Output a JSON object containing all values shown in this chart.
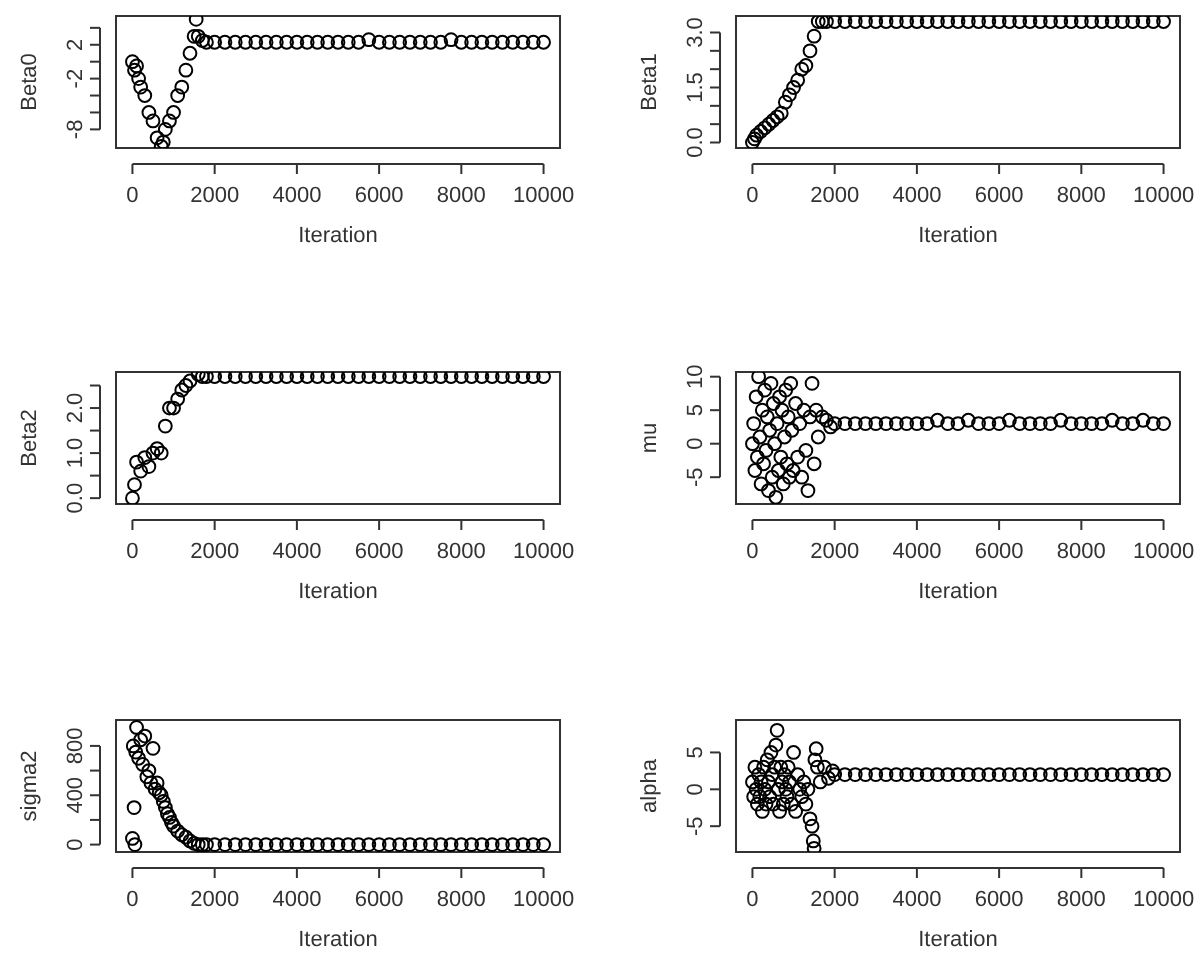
{
  "chart_data": [
    {
      "type": "scatter",
      "xlabel": "Iteration",
      "ylabel": "Beta0",
      "marker": "circle",
      "color": "#000000",
      "xlim": [
        -400,
        10400
      ],
      "xticks": [
        0,
        2000,
        4000,
        6000,
        8000,
        10000
      ],
      "ylim": [
        -10.2,
        5.4
      ],
      "yticks": [
        {
          "value": -8,
          "label": "-8"
        },
        {
          "value": -6,
          "label": null
        },
        {
          "value": -4,
          "label": null
        },
        {
          "value": -2,
          "label": "-2"
        },
        {
          "value": 0,
          "label": null
        },
        {
          "value": 2,
          "label": "2"
        },
        {
          "value": 4,
          "label": null
        }
      ],
      "x": [
        0,
        50,
        100,
        150,
        200,
        300,
        400,
        500,
        600,
        700,
        750,
        800,
        900,
        1000,
        1100,
        1200,
        1300,
        1400,
        1500,
        1550,
        1600,
        1700,
        1800,
        2000,
        2250,
        2500,
        2750,
        3000,
        3250,
        3500,
        3750,
        4000,
        4250,
        4500,
        4750,
        5000,
        5250,
        5500,
        5750,
        6000,
        6250,
        6500,
        6750,
        7000,
        7250,
        7500,
        7750,
        8000,
        8250,
        8500,
        8750,
        9000,
        9250,
        9500,
        9750,
        10000
      ],
      "values": [
        0,
        -1,
        -0.5,
        -2,
        -3,
        -4,
        -6,
        -7,
        -9,
        -10,
        -9.5,
        -8,
        -7,
        -6,
        -4,
        -3,
        -1,
        1,
        3,
        5,
        3,
        2.5,
        2.3,
        2.3,
        2.3,
        2.3,
        2.3,
        2.3,
        2.3,
        2.3,
        2.3,
        2.3,
        2.3,
        2.3,
        2.3,
        2.3,
        2.3,
        2.3,
        2.6,
        2.3,
        2.3,
        2.3,
        2.3,
        2.3,
        2.3,
        2.3,
        2.6,
        2.3,
        2.3,
        2.3,
        2.3,
        2.3,
        2.3,
        2.3,
        2.3,
        2.3
      ]
    },
    {
      "type": "scatter",
      "xlabel": "Iteration",
      "ylabel": "Beta1",
      "marker": "circle",
      "color": "#000000",
      "xlim": [
        -400,
        10400
      ],
      "xticks": [
        0,
        2000,
        4000,
        6000,
        8000,
        10000
      ],
      "ylim": [
        -0.15,
        3.45
      ],
      "yticks": [
        {
          "value": 0,
          "label": "0.0"
        },
        {
          "value": 0.5,
          "label": null
        },
        {
          "value": 1,
          "label": null
        },
        {
          "value": 1.5,
          "label": "1.5"
        },
        {
          "value": 2,
          "label": null
        },
        {
          "value": 2.5,
          "label": null
        },
        {
          "value": 3,
          "label": "3.0"
        }
      ],
      "x": [
        0,
        50,
        100,
        200,
        300,
        400,
        500,
        600,
        700,
        800,
        900,
        1000,
        1100,
        1200,
        1300,
        1400,
        1500,
        1600,
        1700,
        1800,
        2000,
        2250,
        2500,
        2750,
        3000,
        3250,
        3500,
        3750,
        4000,
        4250,
        4500,
        4750,
        5000,
        5250,
        5500,
        5750,
        6000,
        6250,
        6500,
        6750,
        7000,
        7250,
        7500,
        7750,
        8000,
        8250,
        8500,
        8750,
        9000,
        9250,
        9500,
        9750,
        10000
      ],
      "values": [
        0,
        0.1,
        0.2,
        0.3,
        0.4,
        0.5,
        0.6,
        0.7,
        0.8,
        1.1,
        1.3,
        1.5,
        1.7,
        2,
        2.1,
        2.5,
        2.9,
        3.3,
        3.3,
        3.3,
        3.3,
        3.3,
        3.3,
        3.3,
        3.3,
        3.3,
        3.3,
        3.3,
        3.3,
        3.3,
        3.3,
        3.3,
        3.3,
        3.3,
        3.3,
        3.3,
        3.3,
        3.3,
        3.3,
        3.3,
        3.3,
        3.3,
        3.3,
        3.3,
        3.3,
        3.3,
        3.3,
        3.3,
        3.3,
        3.3,
        3.3,
        3.3,
        3.3
      ]
    },
    {
      "type": "scatter",
      "xlabel": "Iteration",
      "ylabel": "Beta2",
      "marker": "circle",
      "color": "#000000",
      "xlim": [
        -400,
        10400
      ],
      "xticks": [
        0,
        2000,
        4000,
        6000,
        8000,
        10000
      ],
      "ylim": [
        -0.13,
        2.8
      ],
      "yticks": [
        {
          "value": 0,
          "label": "0.0"
        },
        {
          "value": 0.5,
          "label": null
        },
        {
          "value": 1,
          "label": "1.0"
        },
        {
          "value": 1.5,
          "label": null
        },
        {
          "value": 2,
          "label": "2.0"
        },
        {
          "value": 2.5,
          "label": null
        }
      ],
      "x": [
        0,
        50,
        100,
        200,
        300,
        400,
        500,
        600,
        700,
        800,
        900,
        1000,
        1100,
        1200,
        1300,
        1400,
        1600,
        1700,
        1800,
        2000,
        2250,
        2500,
        2750,
        3000,
        3250,
        3500,
        3750,
        4000,
        4250,
        4500,
        4750,
        5000,
        5250,
        5500,
        5750,
        6000,
        6250,
        6500,
        6750,
        7000,
        7250,
        7500,
        7750,
        8000,
        8250,
        8500,
        8750,
        9000,
        9250,
        9500,
        9750,
        10000
      ],
      "values": [
        0,
        0.3,
        0.8,
        0.6,
        0.9,
        0.7,
        1,
        1.1,
        1,
        1.6,
        2,
        2,
        2.2,
        2.4,
        2.5,
        2.6,
        2.75,
        2.7,
        2.7,
        2.7,
        2.7,
        2.7,
        2.7,
        2.7,
        2.7,
        2.7,
        2.7,
        2.7,
        2.7,
        2.7,
        2.7,
        2.7,
        2.7,
        2.7,
        2.7,
        2.7,
        2.7,
        2.7,
        2.7,
        2.7,
        2.7,
        2.7,
        2.7,
        2.7,
        2.7,
        2.7,
        2.7,
        2.7,
        2.7,
        2.7,
        2.7,
        2.7
      ]
    },
    {
      "type": "scatter",
      "xlabel": "Iteration",
      "ylabel": "mu",
      "marker": "circle",
      "color": "#000000",
      "xlim": [
        -400,
        10400
      ],
      "xticks": [
        0,
        2000,
        4000,
        6000,
        8000,
        10000
      ],
      "ylim": [
        -9,
        10.7
      ],
      "yticks": [
        -5,
        0,
        5,
        10
      ],
      "x": [
        0,
        30,
        60,
        90,
        120,
        150,
        180,
        210,
        240,
        270,
        300,
        330,
        360,
        390,
        420,
        450,
        480,
        510,
        540,
        570,
        600,
        630,
        660,
        690,
        720,
        750,
        780,
        810,
        840,
        870,
        900,
        930,
        960,
        990,
        1050,
        1100,
        1150,
        1200,
        1250,
        1300,
        1350,
        1400,
        1450,
        1500,
        1550,
        1600,
        1700,
        1800,
        1900,
        2000,
        2250,
        2500,
        2750,
        3000,
        3250,
        3500,
        3750,
        4000,
        4250,
        4500,
        4750,
        5000,
        5250,
        5500,
        5750,
        6000,
        6250,
        6500,
        6750,
        7000,
        7250,
        7500,
        7750,
        8000,
        8250,
        8500,
        8750,
        9000,
        9250,
        9500,
        9750,
        10000
      ],
      "values": [
        0,
        3,
        -4,
        7,
        -2,
        10,
        1,
        -6,
        5,
        -3,
        8,
        -1,
        4,
        -7,
        2,
        9,
        -5,
        6,
        0,
        -8,
        3,
        -4,
        7,
        -2,
        5,
        -6,
        1,
        8,
        -3,
        4,
        -5,
        9,
        2,
        -4,
        6,
        -2,
        3,
        -5,
        5,
        -1,
        -7,
        4,
        9,
        -3,
        5,
        1,
        4,
        3.5,
        2.5,
        3,
        3,
        3,
        3,
        3,
        3,
        3,
        3,
        3,
        3,
        3.5,
        3,
        3,
        3.5,
        3,
        3,
        3,
        3.5,
        3,
        3,
        3,
        3,
        3.5,
        3,
        3,
        3,
        3,
        3.5,
        3,
        3,
        3.5,
        3,
        3
      ]
    },
    {
      "type": "scatter",
      "xlabel": "Iteration",
      "ylabel": "sigma2",
      "marker": "circle",
      "color": "#000000",
      "xlim": [
        -400,
        10400
      ],
      "xticks": [
        0,
        2000,
        4000,
        6000,
        8000,
        10000
      ],
      "ylim": [
        -60,
        1010
      ],
      "yticks": [
        {
          "value": 0,
          "label": "0"
        },
        {
          "value": 200,
          "label": null
        },
        {
          "value": 400,
          "label": "400"
        },
        {
          "value": 600,
          "label": null
        },
        {
          "value": 800,
          "label": "800"
        }
      ],
      "x": [
        0,
        20,
        40,
        60,
        80,
        100,
        150,
        200,
        250,
        300,
        350,
        400,
        450,
        500,
        550,
        600,
        650,
        700,
        750,
        800,
        850,
        900,
        950,
        1000,
        1100,
        1200,
        1300,
        1400,
        1500,
        1600,
        1700,
        1800,
        2000,
        2250,
        2500,
        2750,
        3000,
        3250,
        3500,
        3750,
        4000,
        4250,
        4500,
        4750,
        5000,
        5250,
        5500,
        5750,
        6000,
        6250,
        6500,
        6750,
        7000,
        7250,
        7500,
        7750,
        8000,
        8250,
        8500,
        8750,
        9000,
        9250,
        9500,
        9750,
        10000
      ],
      "values": [
        50,
        800,
        300,
        0,
        750,
        950,
        700,
        850,
        650,
        880,
        550,
        600,
        500,
        780,
        450,
        500,
        420,
        400,
        350,
        300,
        250,
        220,
        180,
        150,
        110,
        80,
        60,
        30,
        10,
        0,
        0,
        0,
        0,
        0,
        0,
        0,
        0,
        0,
        0,
        0,
        0,
        0,
        0,
        0,
        0,
        0,
        0,
        0,
        0,
        0,
        0,
        0,
        0,
        0,
        0,
        0,
        0,
        0,
        0,
        0,
        0,
        0,
        0,
        0,
        0
      ]
    },
    {
      "type": "scatter",
      "xlabel": "Iteration",
      "ylabel": "alpha",
      "marker": "circle",
      "color": "#000000",
      "xlim": [
        -400,
        10400
      ],
      "xticks": [
        0,
        2000,
        4000,
        6000,
        8000,
        10000
      ],
      "ylim": [
        -8.5,
        9.4
      ],
      "yticks": [
        -5,
        0,
        5
      ],
      "x": [
        0,
        30,
        60,
        90,
        120,
        150,
        180,
        210,
        240,
        270,
        300,
        330,
        360,
        390,
        420,
        450,
        480,
        510,
        540,
        570,
        600,
        630,
        660,
        690,
        720,
        750,
        780,
        810,
        840,
        870,
        900,
        950,
        1000,
        1050,
        1100,
        1150,
        1200,
        1250,
        1300,
        1350,
        1400,
        1450,
        1480,
        1500,
        1520,
        1550,
        1580,
        1650,
        1750,
        1850,
        1950,
        2000,
        2250,
        2500,
        2750,
        3000,
        3250,
        3500,
        3750,
        4000,
        4250,
        4500,
        4750,
        5000,
        5250,
        5500,
        5750,
        6000,
        6250,
        6500,
        6750,
        7000,
        7250,
        7500,
        7750,
        8000,
        8250,
        8500,
        8750,
        9000,
        9250,
        9500,
        9750,
        10000
      ],
      "values": [
        1,
        -1,
        3,
        0,
        -2,
        2,
        -1,
        1,
        -3,
        3,
        0,
        -2,
        4,
        1,
        -1,
        5,
        2,
        -2,
        3,
        6,
        8,
        0,
        -3,
        3,
        1,
        -2,
        2,
        0,
        -1,
        3,
        1,
        -2,
        5,
        -3,
        2,
        0,
        -1,
        1,
        -2,
        0,
        -4,
        -5,
        -7,
        -8,
        4,
        5.5,
        3,
        1,
        3,
        1.5,
        2.5,
        2,
        2,
        2,
        2,
        2,
        2,
        2,
        2,
        2,
        2,
        2,
        2,
        2,
        2,
        2,
        2,
        2,
        2,
        2,
        2,
        2,
        2,
        2,
        2,
        2,
        2,
        2,
        2,
        2,
        2,
        2,
        2,
        2
      ]
    }
  ]
}
